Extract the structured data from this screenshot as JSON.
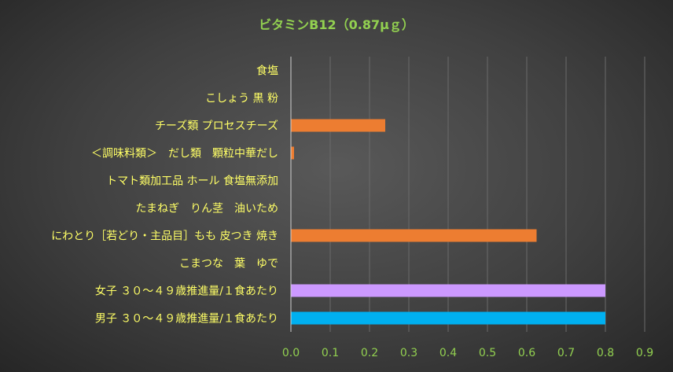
{
  "chart_data": {
    "type": "bar",
    "orientation": "horizontal",
    "title": "ビタミンB12（0.87μｇ）",
    "xlabel": "",
    "ylabel": "",
    "categories": [
      "食塩",
      "こしょう 黒 粉",
      "チーズ類 プロセスチーズ",
      "＜調味料類＞　だし類　顆粒中華だし",
      "トマト類加工品 ホール 食塩無添加",
      "たまねぎ　りん茎　油いため",
      "にわとり［若どり・主品目］もも 皮つき 焼き",
      "こまつな　葉　ゆで",
      "女子 ３０～４９歳推進量/１食あたり",
      "男子 ３０～４９歳推進量/１食あたり"
    ],
    "values": [
      0,
      0,
      0.24,
      0.008,
      0,
      0,
      0.625,
      0,
      0.8,
      0.8
    ],
    "bar_colors": [
      "#ed7d31",
      "#ed7d31",
      "#ed7d31",
      "#ed7d31",
      "#ed7d31",
      "#ed7d31",
      "#ed7d31",
      "#ed7d31",
      "#cc99ff",
      "#00b0f0"
    ],
    "xlim": [
      0,
      0.9
    ],
    "xticks": [
      "0.0",
      "0.1",
      "0.2",
      "0.3",
      "0.4",
      "0.5",
      "0.6",
      "0.7",
      "0.8",
      "0.9"
    ],
    "grid": true,
    "legend": "none"
  },
  "colors": {
    "title": "#92d050",
    "category_label": "#ffff66",
    "tick_label": "#92d050"
  }
}
